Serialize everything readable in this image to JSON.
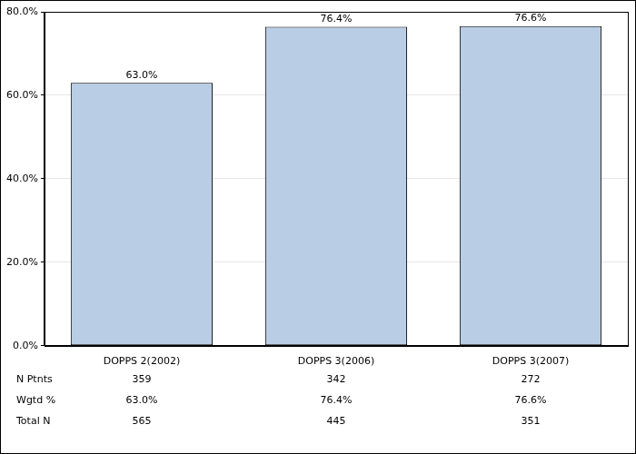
{
  "chart_data": {
    "type": "bar",
    "categories": [
      "DOPPS 2(2002)",
      "DOPPS 3(2006)",
      "DOPPS 3(2007)"
    ],
    "values": [
      63.0,
      76.4,
      76.6
    ],
    "value_labels": [
      "63.0%",
      "76.4%",
      "76.6%"
    ],
    "data_labels": true,
    "color": "#b9cde5",
    "ylim": [
      0,
      80
    ],
    "yticks": [
      {
        "value": 0,
        "label": "0.0%"
      },
      {
        "value": 20,
        "label": "20.0%"
      },
      {
        "value": 40,
        "label": "40.0%"
      },
      {
        "value": 60,
        "label": "60.0%"
      },
      {
        "value": 80,
        "label": "80.0%"
      }
    ],
    "grid": true
  },
  "table": {
    "rows": [
      {
        "label": "N Ptnts",
        "values": [
          "359",
          "342",
          "272"
        ]
      },
      {
        "label": "Wgtd %",
        "values": [
          "63.0%",
          "76.4%",
          "76.6%"
        ]
      },
      {
        "label": "Total N",
        "values": [
          "565",
          "445",
          "351"
        ]
      }
    ]
  }
}
